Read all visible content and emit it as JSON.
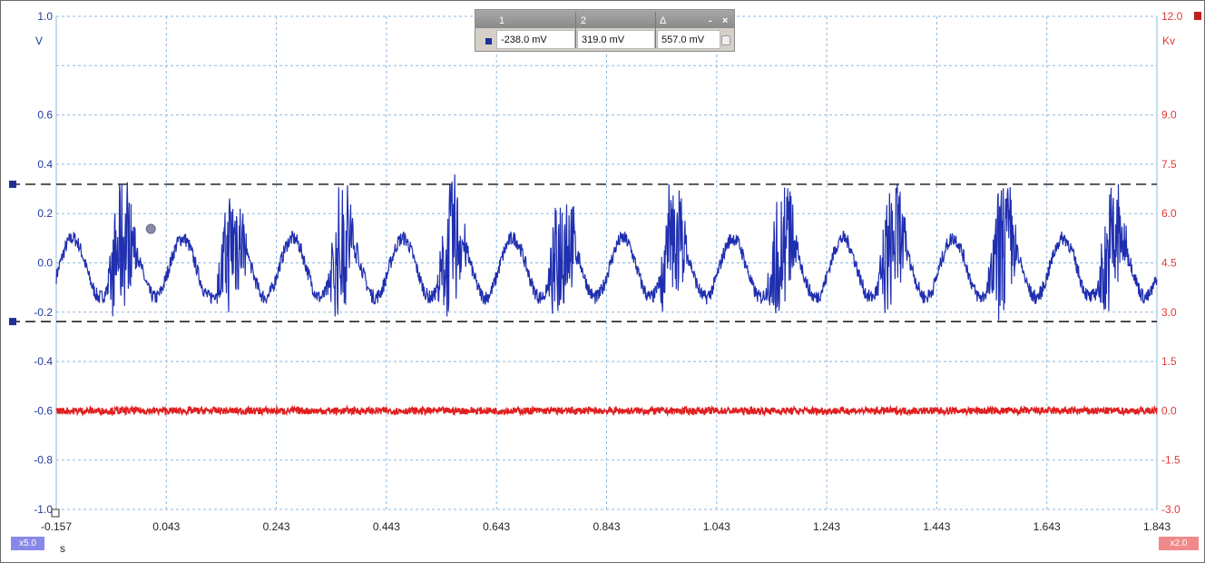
{
  "chart_data": {
    "type": "line",
    "xlabel": "s",
    "x_ticks": [
      "-0.157",
      "0.043",
      "0.243",
      "0.443",
      "0.643",
      "0.843",
      "1.043",
      "1.243",
      "1.443",
      "1.643",
      "1.843"
    ],
    "xlim": [
      -0.157,
      1.843
    ],
    "y_left": {
      "unit": "V",
      "ylim": [
        -1.0,
        1.0
      ],
      "ticks": [
        "1.0",
        "0.6",
        "0.4",
        "0.2",
        "0.0",
        "-0.2",
        "-0.4",
        "-0.6",
        "-0.8",
        "-1.0"
      ],
      "color": "#1f2fb0"
    },
    "y_right": {
      "unit": "Kv",
      "ylim": [
        -3.0,
        12.0
      ],
      "ticks": [
        "12.0",
        "9.0",
        "7.5",
        "6.0",
        "4.5",
        "3.0",
        "1.5",
        "0.0",
        "-1.5",
        "-3.0"
      ],
      "color": "#e02020"
    },
    "grid": true,
    "series": [
      {
        "axis": "left",
        "color": "#1f2fb0",
        "description": "Noisy periodic waveform, about 10 cycles over 2 s, range about -0.31 V to 0.36 V",
        "x": [
          -0.157,
          -0.137,
          -0.117,
          -0.097,
          -0.077,
          -0.057,
          -0.037,
          -0.017,
          0.003,
          0.023,
          0.043,
          0.063,
          0.083,
          0.103,
          0.123,
          0.143,
          0.163,
          0.183,
          0.203,
          0.223,
          0.243,
          0.263,
          0.283,
          0.303,
          0.323,
          0.343,
          0.363,
          0.383,
          0.403,
          0.423,
          0.443
        ],
        "y": [
          0.2,
          0.0,
          -0.12,
          -0.1,
          0.05,
          0.16,
          -0.08,
          -0.2,
          0.26,
          0.18,
          -0.1,
          -0.06,
          0.14,
          0.04,
          -0.24,
          0.3,
          -0.12,
          0.34,
          0.02,
          -0.1,
          -0.06,
          0.24,
          -0.02,
          -0.26,
          0.3,
          0.06,
          -0.1,
          0.26,
          0.1,
          -0.24,
          0.28
        ]
      },
      {
        "axis": "right",
        "color": "#e02020",
        "description": "Flat noisy trace near 0.0 Kv",
        "x": [
          -0.157,
          1.843
        ],
        "y": [
          0.0,
          0.0
        ]
      }
    ],
    "reference_lines": [
      {
        "axis": "left",
        "value": 0.319,
        "style": "dashed"
      },
      {
        "axis": "left",
        "value": -0.238,
        "style": "dashed"
      }
    ],
    "marker_point": {
      "x": 0.0,
      "y": 0.16,
      "axis": "left"
    }
  },
  "ruler_panel": {
    "col1_header": "1",
    "col2_header": "2",
    "col3_header": "Δ",
    "val1": "-238.0 mV",
    "val2": "319.0 mV",
    "delta": "557.0 mV",
    "minimize_label": "-",
    "close_label": "×"
  },
  "left_scale_badge": "x5.0",
  "right_scale_badge": "x2.0",
  "icons": {
    "left_ruler_handle": "square-marker-icon",
    "right_channel": "red-square-icon",
    "lock": "lock-icon"
  }
}
